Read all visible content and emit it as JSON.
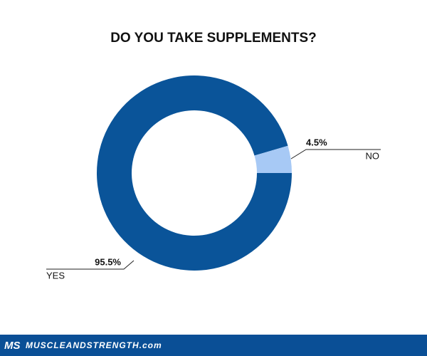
{
  "chart_data": {
    "type": "donut",
    "title": "DO YOU TAKE SUPPLEMENTS?",
    "categories": [
      "YES",
      "NO"
    ],
    "values": [
      95.5,
      4.5
    ],
    "value_labels": [
      "95.5%",
      "4.5%"
    ],
    "colors": [
      "#0a5499",
      "#a7c9f5"
    ]
  },
  "footer": {
    "logo": "MS",
    "site": "MUSCLEANDSTRENGTH.com"
  }
}
